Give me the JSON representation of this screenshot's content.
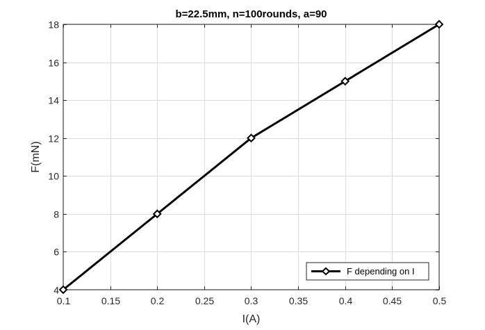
{
  "chart_data": {
    "type": "line",
    "title": "b=22.5mm, n=100rounds, a=90",
    "xlabel": "I(A)",
    "ylabel": "F(mN)",
    "xlim": [
      0.1,
      0.5
    ],
    "ylim": [
      4,
      18
    ],
    "xticks": [
      0.1,
      0.15,
      0.2,
      0.25,
      0.3,
      0.35,
      0.4,
      0.45,
      0.5
    ],
    "xtick_labels": [
      "0.1",
      "0.15",
      "0.2",
      "0.25",
      "0.3",
      "0.35",
      "0.4",
      "0.45",
      "0.5"
    ],
    "yticks": [
      4,
      6,
      8,
      10,
      12,
      14,
      16,
      18
    ],
    "ytick_labels": [
      "4",
      "6",
      "8",
      "10",
      "12",
      "14",
      "16",
      "18"
    ],
    "grid": true,
    "legend_position": "bottom-right",
    "series": [
      {
        "name": "F depending on I",
        "color": "#000000",
        "marker": "diamond",
        "x": [
          0.1,
          0.2,
          0.3,
          0.4,
          0.5
        ],
        "y": [
          4,
          8,
          12,
          15,
          18
        ]
      }
    ]
  }
}
